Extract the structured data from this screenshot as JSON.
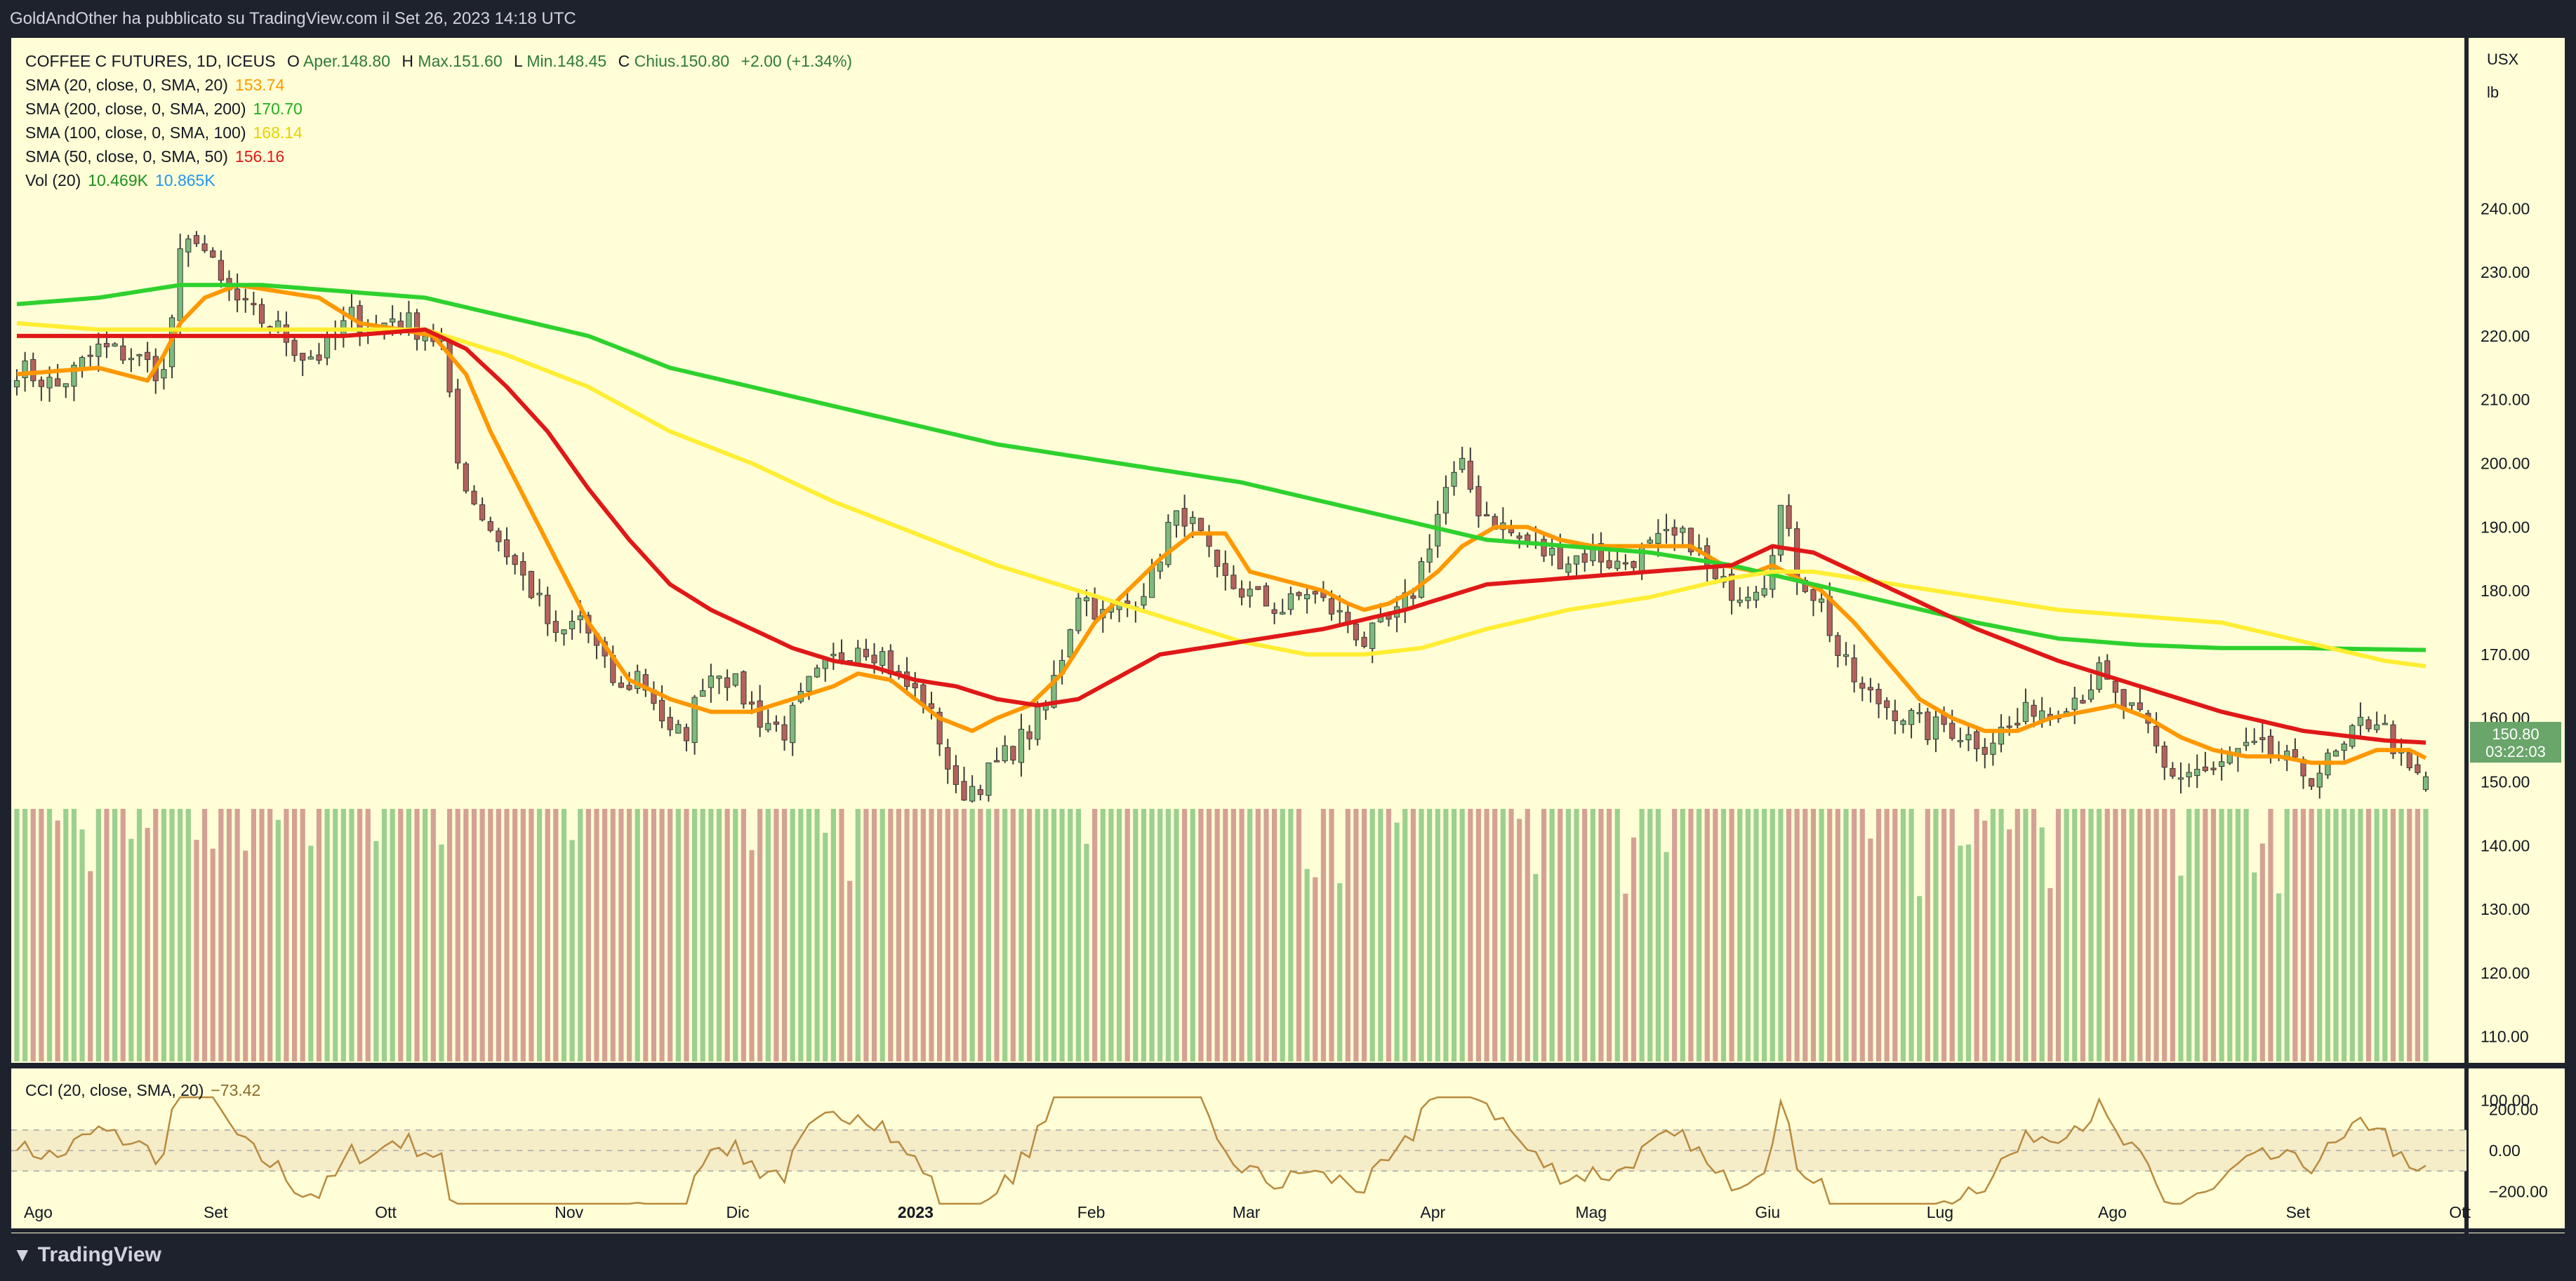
{
  "header": {
    "published": "GoldAndOther ha pubblicato su TradingView.com il Set 26, 2023 14:18 UTC"
  },
  "footer": {
    "brand": "TradingView",
    "logo_icon": "tradingview-logo-icon"
  },
  "colors": {
    "background": "#fffed6",
    "frame": "#1e222d",
    "up": "#7cbb7c",
    "down": "#b5625c",
    "vol_up": "#9bd08f",
    "vol_down": "#d5a194",
    "sma20": "#ff9800",
    "sma200": "#2ed12e",
    "sma100": "#ffee33",
    "sma50": "#e01818",
    "cci": "#b88a3e",
    "price_badge": "#6aa56a"
  },
  "legend": {
    "main": {
      "title": "COFFEE C FUTURES, 1D, ICEUS",
      "open_label": "O",
      "open": "Aper.148.80",
      "high_label": "H",
      "high": "Max.151.60",
      "low_label": "L",
      "low": "Min.148.45",
      "close_label": "C",
      "close": "Chius.150.80",
      "change": "+2.00 (+1.34%)"
    },
    "sma20": {
      "label": "SMA (20, close, 0, SMA, 20)",
      "value": "153.74"
    },
    "sma200": {
      "label": "SMA (200, close, 0, SMA, 200)",
      "value": "170.70"
    },
    "sma100": {
      "label": "SMA (100, close, 0, SMA, 100)",
      "value": "168.14"
    },
    "sma50": {
      "label": "SMA (50, close, 0, SMA, 50)",
      "value": "156.16"
    },
    "vol": {
      "label": "Vol (20)",
      "value1": "10.469K",
      "value2": "10.865K"
    },
    "cci": {
      "label": "CCI (20, close, SMA, 20)",
      "value": "−73.42"
    }
  },
  "price_badge": {
    "price": "150.80",
    "countdown": "03:22:03"
  },
  "chart_data": {
    "type": "candlestick",
    "units": {
      "currency": "USX",
      "unit": "lb"
    },
    "ylim": [
      100,
      250
    ],
    "y_ticks": [
      100,
      110,
      120,
      130,
      140,
      150,
      160,
      170,
      180,
      190,
      200,
      210,
      220,
      230,
      240
    ],
    "y_tick_labels": [
      "100.00",
      "110.00",
      "120.00",
      "130.00",
      "140.00",
      "150.00",
      "160.00",
      "170.00",
      "180.00",
      "190.00",
      "200.00",
      "210.00",
      "220.00",
      "230.00",
      "240.00"
    ],
    "x_ticks": [
      {
        "label": "Ago",
        "bar": 0
      },
      {
        "label": "Set",
        "bar": 22
      },
      {
        "label": "Ott",
        "bar": 43
      },
      {
        "label": "Nov",
        "bar": 65
      },
      {
        "label": "Dic",
        "bar": 86
      },
      {
        "label": "2023",
        "bar": 107,
        "bold": true
      },
      {
        "label": "Feb",
        "bar": 129
      },
      {
        "label": "Mar",
        "bar": 148
      },
      {
        "label": "Apr",
        "bar": 171
      },
      {
        "label": "Mag",
        "bar": 190
      },
      {
        "label": "Giu",
        "bar": 212
      },
      {
        "label": "Lug",
        "bar": 233
      },
      {
        "label": "Ago",
        "bar": 254
      },
      {
        "label": "Set",
        "bar": 277
      },
      {
        "label": "Ott",
        "bar": 297
      }
    ],
    "close_path": [
      [
        0,
        215
      ],
      [
        5,
        212
      ],
      [
        10,
        218
      ],
      [
        14,
        217
      ],
      [
        18,
        214
      ],
      [
        20,
        232
      ],
      [
        22,
        236
      ],
      [
        25,
        228
      ],
      [
        28,
        224
      ],
      [
        32,
        221
      ],
      [
        35,
        217
      ],
      [
        37,
        217
      ],
      [
        41,
        223
      ],
      [
        44,
        221
      ],
      [
        46,
        223
      ],
      [
        48,
        222
      ],
      [
        52,
        219
      ],
      [
        54,
        200
      ],
      [
        56,
        194
      ],
      [
        59,
        188
      ],
      [
        62,
        182
      ],
      [
        64,
        178
      ],
      [
        66,
        172
      ],
      [
        69,
        176
      ],
      [
        72,
        168
      ],
      [
        74,
        164
      ],
      [
        76,
        167
      ],
      [
        78,
        163
      ],
      [
        80,
        157
      ],
      [
        82,
        158
      ],
      [
        84,
        166
      ],
      [
        86,
        168
      ],
      [
        88,
        165
      ],
      [
        91,
        160
      ],
      [
        94,
        158
      ],
      [
        97,
        165
      ],
      [
        100,
        169
      ],
      [
        103,
        172
      ],
      [
        106,
        170
      ],
      [
        108,
        166
      ],
      [
        111,
        163
      ],
      [
        113,
        157
      ],
      [
        115,
        148
      ],
      [
        118,
        150
      ],
      [
        121,
        154
      ],
      [
        124,
        158
      ],
      [
        126,
        162
      ],
      [
        128,
        170
      ],
      [
        130,
        180
      ],
      [
        133,
        176
      ],
      [
        136,
        178
      ],
      [
        139,
        182
      ],
      [
        141,
        190
      ],
      [
        143,
        192
      ],
      [
        145,
        188
      ],
      [
        147,
        182
      ],
      [
        150,
        180
      ],
      [
        153,
        178
      ],
      [
        155,
        177
      ],
      [
        158,
        180
      ],
      [
        160,
        178
      ],
      [
        163,
        175
      ],
      [
        165,
        172
      ],
      [
        167,
        174
      ],
      [
        169,
        176
      ],
      [
        171,
        180
      ],
      [
        173,
        188
      ],
      [
        175,
        196
      ],
      [
        177,
        199
      ],
      [
        179,
        193
      ],
      [
        181,
        191
      ],
      [
        184,
        188
      ],
      [
        187,
        186
      ],
      [
        190,
        185
      ],
      [
        193,
        186
      ],
      [
        196,
        184
      ],
      [
        199,
        186
      ],
      [
        202,
        188
      ],
      [
        205,
        188
      ],
      [
        208,
        181
      ],
      [
        211,
        180
      ],
      [
        214,
        182
      ],
      [
        216,
        193
      ],
      [
        218,
        183
      ],
      [
        221,
        178
      ],
      [
        223,
        170
      ],
      [
        226,
        164
      ],
      [
        229,
        162
      ],
      [
        232,
        160
      ],
      [
        234,
        158
      ],
      [
        236,
        159
      ],
      [
        239,
        157
      ],
      [
        241,
        156
      ],
      [
        243,
        158
      ],
      [
        245,
        159
      ],
      [
        247,
        162
      ],
      [
        249,
        161
      ],
      [
        251,
        163
      ],
      [
        253,
        164
      ],
      [
        255,
        167
      ],
      [
        257,
        163
      ],
      [
        259,
        161
      ],
      [
        261,
        158
      ],
      [
        263,
        152
      ],
      [
        265,
        151
      ],
      [
        267,
        152
      ],
      [
        269,
        151
      ],
      [
        271,
        154
      ],
      [
        274,
        155
      ],
      [
        277,
        154
      ],
      [
        279,
        152
      ],
      [
        281,
        151
      ],
      [
        283,
        153
      ],
      [
        285,
        155
      ],
      [
        287,
        159
      ],
      [
        289,
        160
      ],
      [
        291,
        156
      ],
      [
        293,
        151
      ],
      [
        295,
        150.8
      ]
    ],
    "bars": 296,
    "series": [
      {
        "name": "SMA (20, close, 0, SMA, 20)",
        "points": [
          [
            0,
            214
          ],
          [
            10,
            215
          ],
          [
            16,
            213
          ],
          [
            18,
            217
          ],
          [
            20,
            222
          ],
          [
            23,
            226
          ],
          [
            27,
            228
          ],
          [
            32,
            227
          ],
          [
            37,
            226
          ],
          [
            42,
            222
          ],
          [
            47,
            221
          ],
          [
            51,
            220
          ],
          [
            55,
            214
          ],
          [
            58,
            205
          ],
          [
            62,
            195
          ],
          [
            66,
            185
          ],
          [
            70,
            175
          ],
          [
            75,
            166
          ],
          [
            80,
            163
          ],
          [
            85,
            161
          ],
          [
            90,
            161
          ],
          [
            95,
            163
          ],
          [
            100,
            165
          ],
          [
            103,
            167
          ],
          [
            107,
            166
          ],
          [
            110,
            163
          ],
          [
            113,
            160
          ],
          [
            117,
            158
          ],
          [
            120,
            160
          ],
          [
            124,
            162
          ],
          [
            128,
            167
          ],
          [
            132,
            175
          ],
          [
            136,
            180
          ],
          [
            140,
            185
          ],
          [
            144,
            189
          ],
          [
            148,
            189
          ],
          [
            151,
            183
          ],
          [
            154,
            182
          ],
          [
            157,
            181
          ],
          [
            160,
            180
          ],
          [
            163,
            178
          ],
          [
            165,
            177
          ],
          [
            168,
            178
          ],
          [
            171,
            180
          ],
          [
            174,
            183
          ],
          [
            177,
            187
          ],
          [
            181,
            190
          ],
          [
            185,
            190
          ],
          [
            189,
            188
          ],
          [
            193,
            187
          ],
          [
            197,
            187
          ],
          [
            201,
            187
          ],
          [
            205,
            187
          ],
          [
            209,
            184
          ],
          [
            213,
            183
          ],
          [
            215,
            184
          ],
          [
            218,
            182
          ],
          [
            221,
            180
          ],
          [
            225,
            175
          ],
          [
            229,
            169
          ],
          [
            233,
            163
          ],
          [
            237,
            160
          ],
          [
            241,
            158
          ],
          [
            245,
            158
          ],
          [
            249,
            160
          ],
          [
            253,
            161
          ],
          [
            257,
            162
          ],
          [
            261,
            160
          ],
          [
            265,
            157
          ],
          [
            269,
            155
          ],
          [
            273,
            154
          ],
          [
            277,
            154
          ],
          [
            281,
            153
          ],
          [
            285,
            153
          ],
          [
            289,
            155
          ],
          [
            293,
            155
          ],
          [
            295,
            153.74
          ]
        ]
      },
      {
        "name": "SMA (200, close, 0, SMA, 200)",
        "points": [
          [
            0,
            225
          ],
          [
            10,
            226
          ],
          [
            20,
            228
          ],
          [
            30,
            228
          ],
          [
            40,
            227
          ],
          [
            50,
            226
          ],
          [
            60,
            223
          ],
          [
            70,
            220
          ],
          [
            80,
            215
          ],
          [
            90,
            212
          ],
          [
            100,
            209
          ],
          [
            110,
            206
          ],
          [
            120,
            203
          ],
          [
            130,
            201
          ],
          [
            140,
            199
          ],
          [
            150,
            197
          ],
          [
            160,
            194
          ],
          [
            170,
            191
          ],
          [
            180,
            188
          ],
          [
            190,
            187
          ],
          [
            200,
            186
          ],
          [
            210,
            184
          ],
          [
            220,
            181
          ],
          [
            230,
            178
          ],
          [
            240,
            175
          ],
          [
            250,
            172.5
          ],
          [
            260,
            171.5
          ],
          [
            270,
            171
          ],
          [
            280,
            171
          ],
          [
            295,
            170.7
          ]
        ]
      },
      {
        "name": "SMA (100, close, 0, SMA, 100)",
        "points": [
          [
            0,
            222
          ],
          [
            10,
            221
          ],
          [
            20,
            221
          ],
          [
            30,
            221
          ],
          [
            40,
            221
          ],
          [
            50,
            221
          ],
          [
            60,
            217
          ],
          [
            70,
            212
          ],
          [
            80,
            205
          ],
          [
            90,
            200
          ],
          [
            100,
            194
          ],
          [
            110,
            189
          ],
          [
            120,
            184
          ],
          [
            130,
            180
          ],
          [
            140,
            176
          ],
          [
            150,
            172
          ],
          [
            158,
            170
          ],
          [
            165,
            170
          ],
          [
            172,
            171
          ],
          [
            180,
            174
          ],
          [
            190,
            177
          ],
          [
            200,
            179
          ],
          [
            210,
            182
          ],
          [
            215,
            183
          ],
          [
            220,
            183
          ],
          [
            230,
            181
          ],
          [
            240,
            179
          ],
          [
            250,
            177
          ],
          [
            260,
            176
          ],
          [
            270,
            175
          ],
          [
            280,
            172
          ],
          [
            290,
            169
          ],
          [
            295,
            168.14
          ]
        ]
      },
      {
        "name": "SMA (50, close, 0, SMA, 50)",
        "points": [
          [
            0,
            220
          ],
          [
            10,
            220
          ],
          [
            20,
            220
          ],
          [
            30,
            220
          ],
          [
            40,
            220
          ],
          [
            50,
            221
          ],
          [
            55,
            218
          ],
          [
            60,
            212
          ],
          [
            65,
            205
          ],
          [
            70,
            196
          ],
          [
            75,
            188
          ],
          [
            80,
            181
          ],
          [
            85,
            177
          ],
          [
            90,
            174
          ],
          [
            95,
            171
          ],
          [
            100,
            169
          ],
          [
            105,
            168
          ],
          [
            110,
            166
          ],
          [
            115,
            165
          ],
          [
            120,
            163
          ],
          [
            125,
            162
          ],
          [
            130,
            163
          ],
          [
            140,
            170
          ],
          [
            150,
            172
          ],
          [
            160,
            174
          ],
          [
            170,
            177
          ],
          [
            180,
            181
          ],
          [
            190,
            182
          ],
          [
            200,
            183
          ],
          [
            210,
            184
          ],
          [
            215,
            187
          ],
          [
            220,
            186
          ],
          [
            230,
            180
          ],
          [
            240,
            174
          ],
          [
            250,
            169
          ],
          [
            260,
            165
          ],
          [
            270,
            161
          ],
          [
            280,
            158
          ],
          [
            290,
            156.5
          ],
          [
            295,
            156.16
          ]
        ]
      }
    ],
    "volume": {
      "ylim": [
        0,
        40000
      ],
      "avg_20": 10469,
      "last": 10865
    },
    "cci": {
      "name": "CCI (20, close, SMA, 20)",
      "ylim": [
        -300,
        260
      ],
      "ticks": [
        200,
        0,
        -200
      ],
      "tick_labels": [
        "200.00",
        "0.00",
        "−200.00"
      ],
      "bands": [
        100,
        -100
      ],
      "last": -73.42
    },
    "legend_position": "top-left",
    "grid": false
  }
}
